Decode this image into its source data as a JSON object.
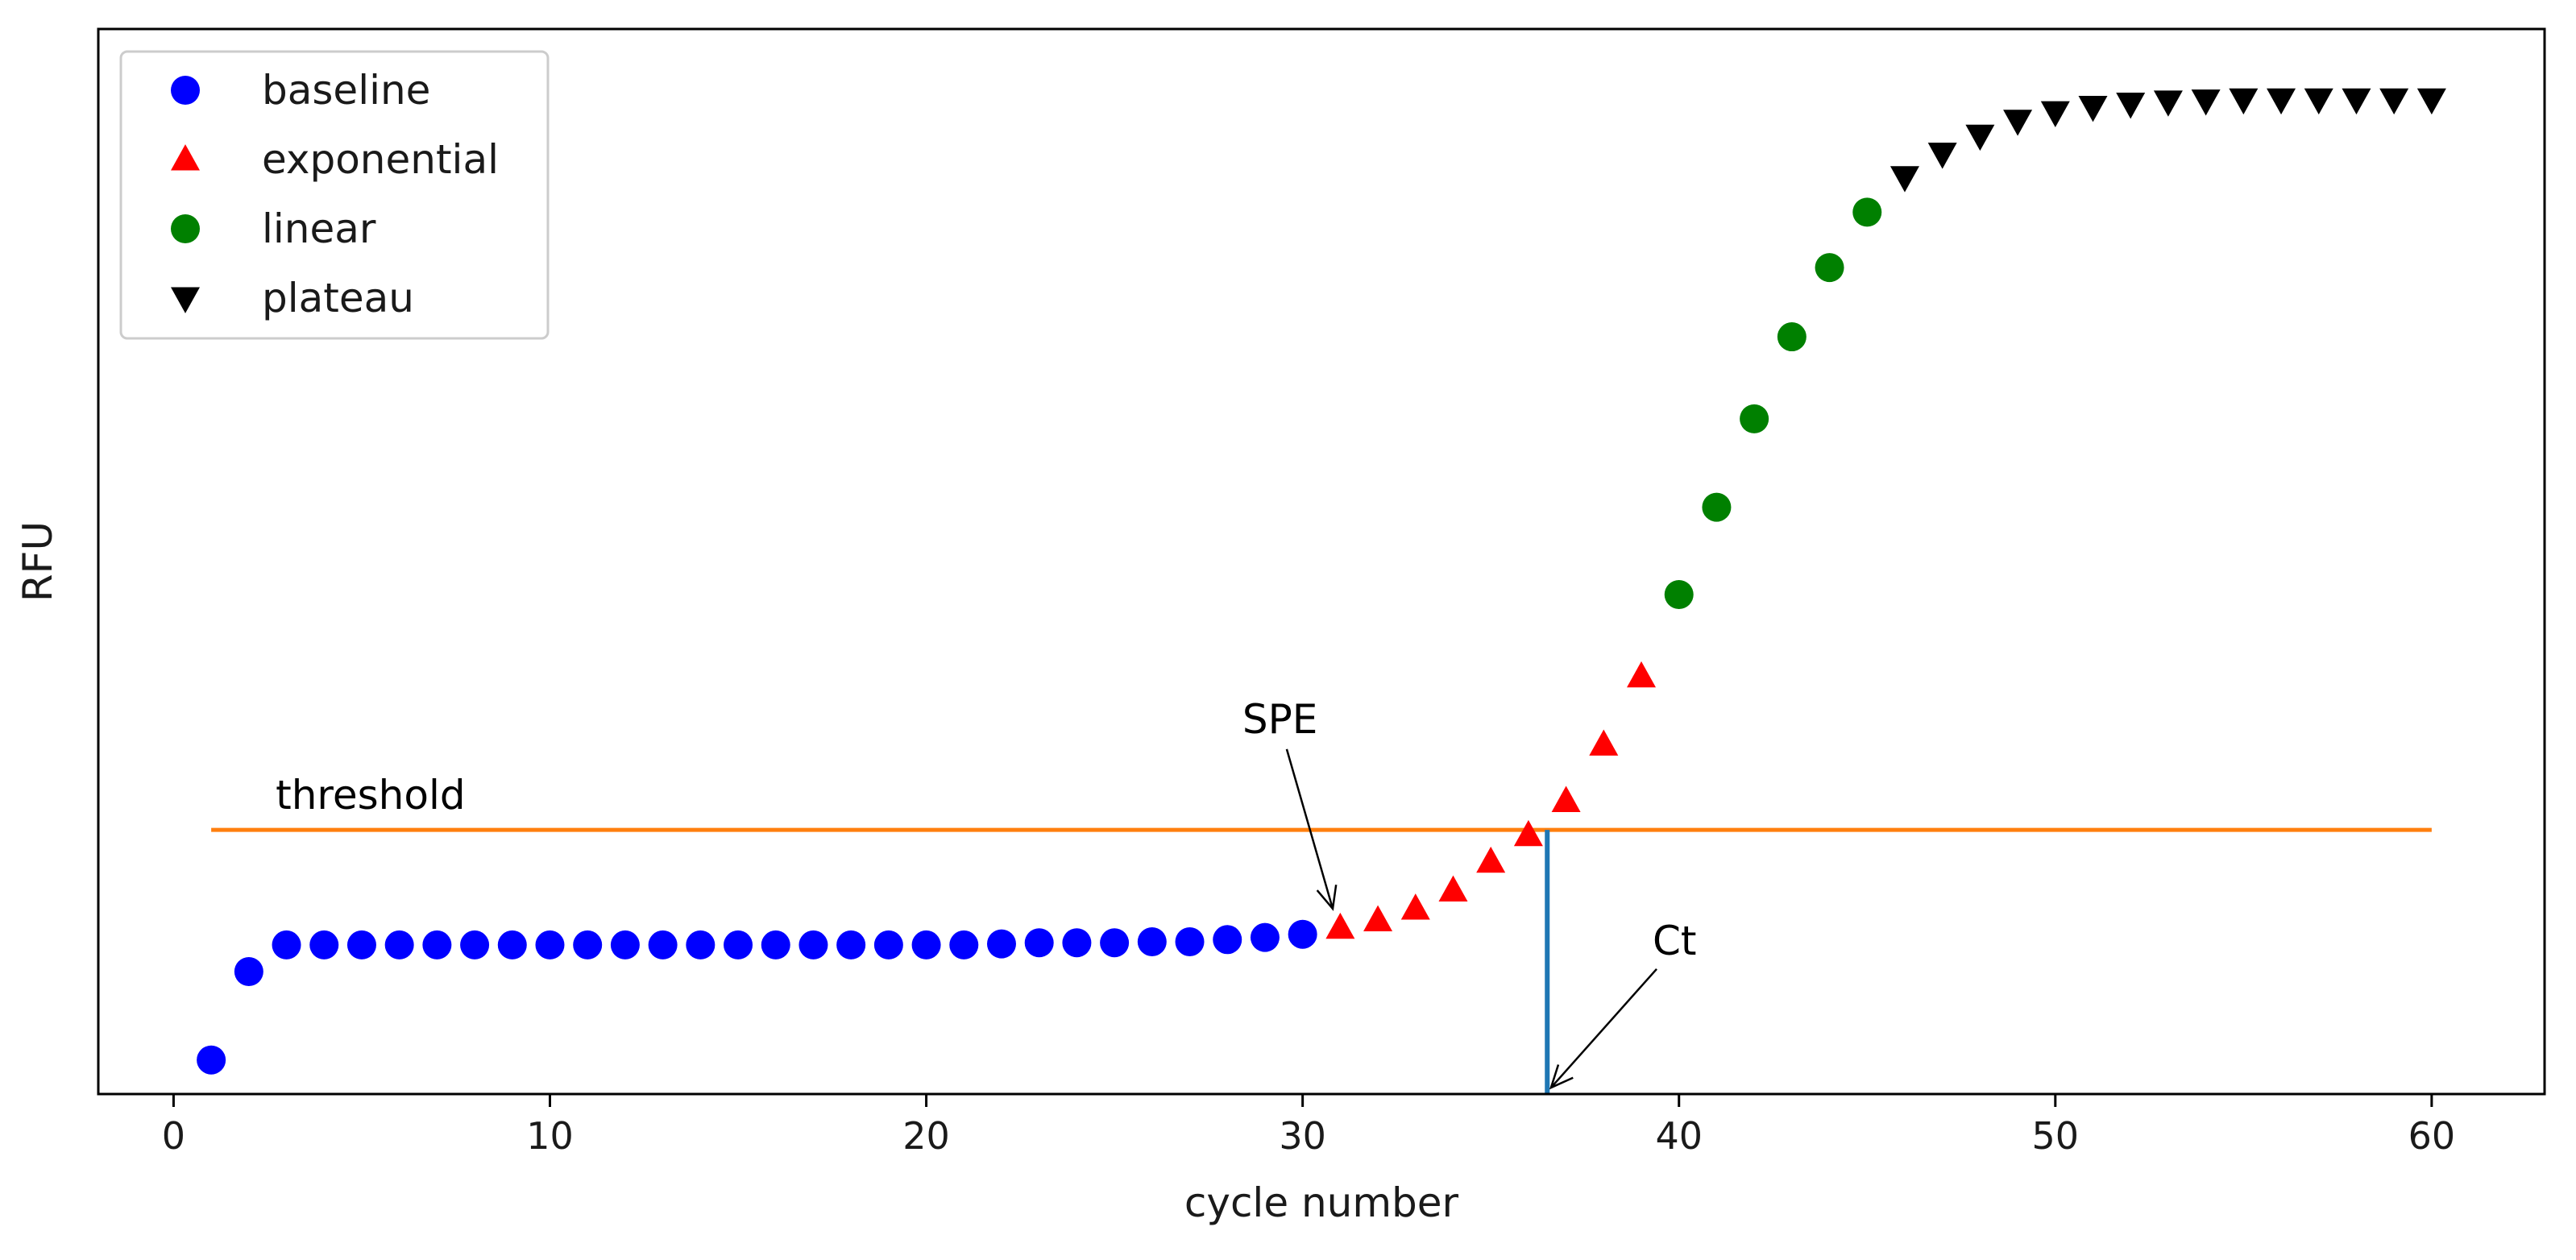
{
  "chart_data": {
    "type": "scatter",
    "title": "",
    "xlabel": "cycle number",
    "ylabel": "RFU",
    "xlim": [
      -2,
      63
    ],
    "ylim": [
      0,
      100
    ],
    "xticks": [
      0,
      10,
      20,
      30,
      40,
      50,
      60
    ],
    "xtick_labels": [
      "0",
      "10",
      "20",
      "30",
      "40",
      "50",
      "60"
    ],
    "yticks_shown": false,
    "grid": false,
    "legend_position": "top-left",
    "colors": {
      "baseline": "#0000ff",
      "exponential": "#ff0000",
      "linear": "#008000",
      "plateau": "#000000",
      "threshold": "#ff7f0e",
      "ct_line": "#1f77b4"
    },
    "series": [
      {
        "name": "baseline",
        "marker": "circle",
        "x": [
          1,
          2,
          3,
          4,
          5,
          6,
          7,
          8,
          9,
          10,
          11,
          12,
          13,
          14,
          15,
          16,
          17,
          18,
          19,
          20,
          21,
          22,
          23,
          24,
          25,
          26,
          27,
          28,
          29,
          30
        ],
        "y": [
          3.2,
          11.5,
          14.0,
          14.0,
          14.0,
          14.0,
          14.0,
          14.0,
          14.0,
          14.0,
          14.0,
          14.0,
          14.0,
          14.0,
          14.0,
          14.0,
          14.0,
          14.0,
          14.0,
          14.0,
          14.0,
          14.1,
          14.2,
          14.2,
          14.2,
          14.3,
          14.3,
          14.5,
          14.7,
          15.0
        ]
      },
      {
        "name": "exponential",
        "marker": "triangle-up",
        "x": [
          31,
          32,
          33,
          34,
          35,
          36,
          37,
          38,
          39
        ],
        "y": [
          15.6,
          16.3,
          17.4,
          19.1,
          21.8,
          24.3,
          27.5,
          32.8,
          39.2
        ]
      },
      {
        "name": "linear",
        "marker": "circle",
        "x": [
          40,
          41,
          42,
          43,
          44,
          45
        ],
        "y": [
          46.9,
          55.1,
          63.4,
          71.1,
          77.6,
          82.8
        ]
      },
      {
        "name": "plateau",
        "marker": "triangle-down",
        "x": [
          46,
          47,
          48,
          49,
          50,
          51,
          52,
          53,
          54,
          55,
          56,
          57,
          58,
          59,
          60
        ],
        "y": [
          86.1,
          88.3,
          90.0,
          91.4,
          92.2,
          92.7,
          93.0,
          93.2,
          93.3,
          93.4,
          93.4,
          93.4,
          93.4,
          93.4,
          93.4
        ]
      }
    ],
    "threshold": {
      "label": "threshold",
      "y": 24.8,
      "x_start": 1,
      "x_end": 60
    },
    "ct_line": {
      "x": 36.5,
      "y_top": 24.8
    },
    "annotations": [
      {
        "text": "SPE",
        "text_x": 28.4,
        "text_y": 33.9,
        "point_x": 30.8,
        "point_y": 17.4
      },
      {
        "text": "Ct",
        "text_x": 39.3,
        "text_y": 13.1,
        "point_x": 36.6,
        "point_y": 0.6
      }
    ]
  }
}
